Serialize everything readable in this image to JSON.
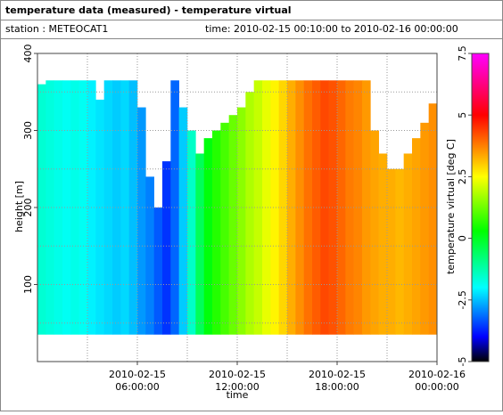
{
  "chart_data": {
    "type": "heatmap",
    "title": "temperature data (measured) - temperature virtual",
    "station": "station : METEOCAT1",
    "period": "time: 2010-02-15 00:10:00 to 2010-02-16 00:00:00",
    "xlabel": "time",
    "ylabel": "height [m]",
    "colorbar_label": "temperature virtual [deg C]",
    "x": [
      "2010-02-15 00:00:00",
      "2010-02-15 00:30:00",
      "2010-02-15 01:00:00",
      "2010-02-15 01:30:00",
      "2010-02-15 02:00:00",
      "2010-02-15 02:30:00",
      "2010-02-15 03:00:00",
      "2010-02-15 03:30:00",
      "2010-02-15 04:00:00",
      "2010-02-15 04:30:00",
      "2010-02-15 05:00:00",
      "2010-02-15 05:30:00",
      "2010-02-15 06:00:00",
      "2010-02-15 06:30:00",
      "2010-02-15 07:00:00",
      "2010-02-15 07:30:00",
      "2010-02-15 08:00:00",
      "2010-02-15 08:30:00",
      "2010-02-15 09:00:00",
      "2010-02-15 09:30:00",
      "2010-02-15 10:00:00",
      "2010-02-15 10:30:00",
      "2010-02-15 11:00:00",
      "2010-02-15 11:30:00",
      "2010-02-15 12:00:00",
      "2010-02-15 12:30:00",
      "2010-02-15 13:00:00",
      "2010-02-15 13:30:00",
      "2010-02-15 14:00:00",
      "2010-02-15 14:30:00",
      "2010-02-15 15:00:00",
      "2010-02-15 15:30:00",
      "2010-02-15 16:00:00",
      "2010-02-15 16:30:00",
      "2010-02-15 17:00:00",
      "2010-02-15 17:30:00",
      "2010-02-15 18:00:00",
      "2010-02-15 18:30:00",
      "2010-02-15 19:00:00",
      "2010-02-15 19:30:00",
      "2010-02-15 20:00:00",
      "2010-02-15 20:30:00",
      "2010-02-15 21:00:00",
      "2010-02-15 21:30:00",
      "2010-02-15 22:00:00",
      "2010-02-15 22:30:00",
      "2010-02-15 23:00:00",
      "2010-02-15 23:30:00"
    ],
    "values": [
      -1.6,
      -1.7,
      -1.8,
      -1.9,
      -1.8,
      -1.9,
      -2.1,
      -2.2,
      -2.3,
      -2.4,
      -2.3,
      -2.5,
      -2.8,
      -3.0,
      -3.3,
      -3.6,
      -3.2,
      -2.4,
      -1.5,
      -0.5,
      0.2,
      0.6,
      0.9,
      1.2,
      1.5,
      1.8,
      2.0,
      2.3,
      2.6,
      2.9,
      3.3,
      3.6,
      3.9,
      4.1,
      4.3,
      4.2,
      4.0,
      3.8,
      3.7,
      3.5,
      3.4,
      3.3,
      3.3,
      3.2,
      3.3,
      3.4,
      3.5,
      3.6
    ],
    "tops": [
      360,
      365,
      365,
      365,
      365,
      365,
      365,
      340,
      365,
      365,
      365,
      365,
      330,
      240,
      200,
      260,
      365,
      330,
      300,
      270,
      290,
      300,
      310,
      320,
      330,
      350,
      365,
      365,
      365,
      365,
      365,
      365,
      365,
      365,
      365,
      365,
      365,
      365,
      365,
      365,
      300,
      270,
      250,
      250,
      270,
      290,
      310,
      335
    ],
    "base": 35,
    "xlim": [
      "2010-02-15 00:00:00",
      "2010-02-16 00:00:00"
    ],
    "xticks": [
      "2010-02-15 06:00:00",
      "2010-02-15 12:00:00",
      "2010-02-15 18:00:00",
      "2010-02-16 00:00:00"
    ],
    "xgrid": [
      "2010-02-15 03:00:00",
      "2010-02-15 06:00:00",
      "2010-02-15 09:00:00",
      "2010-02-15 12:00:00",
      "2010-02-15 15:00:00",
      "2010-02-15 18:00:00",
      "2010-02-15 21:00:00"
    ],
    "ylim": [
      0,
      400
    ],
    "yticks": [
      100,
      200,
      300,
      400
    ],
    "ygrid": [
      50,
      100,
      150,
      200,
      250,
      300,
      350
    ],
    "clim": [
      -5,
      7.5
    ],
    "cticks": [
      -5,
      -2.5,
      0,
      2.5,
      5,
      7.5
    ],
    "colormap": [
      [
        -5,
        "#000000"
      ],
      [
        -4,
        "#0000ff"
      ],
      [
        -2,
        "#00ffff"
      ],
      [
        0.3,
        "#00ff00"
      ],
      [
        2.5,
        "#ffff00"
      ],
      [
        3.75,
        "#ff8000"
      ],
      [
        5,
        "#ff0000"
      ],
      [
        7.5,
        "#ff00ff"
      ]
    ]
  }
}
